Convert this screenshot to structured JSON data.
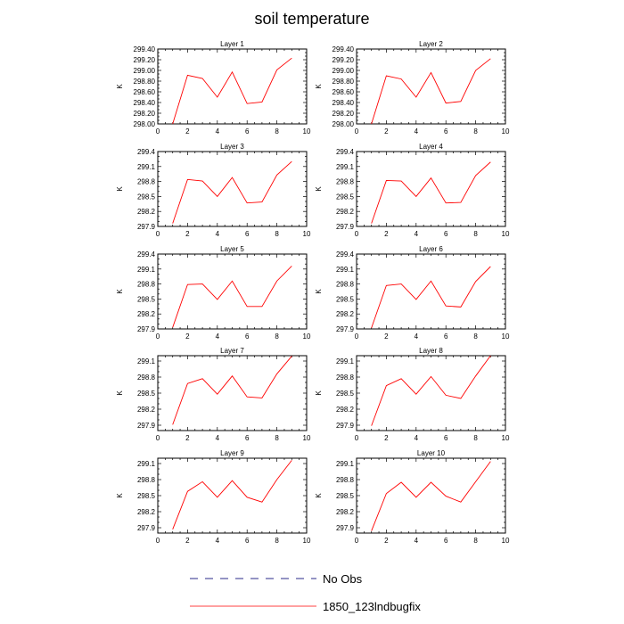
{
  "title": "soil temperature",
  "colors": {
    "model_line": "#ff0000",
    "obs_line": "#2a2a8a",
    "axis": "#000000",
    "background": "#ffffff"
  },
  "legend": {
    "items": [
      {
        "label": "No Obs",
        "style": "dashed",
        "color": "#2a2a8a"
      },
      {
        "label": "1850_123lndbugfix",
        "style": "solid",
        "color": "#ff0000"
      }
    ]
  },
  "chart_data": [
    {
      "type": "line",
      "title": "Layer 1",
      "ylabel": "K",
      "xlim": [
        0,
        10
      ],
      "xticks": [
        0,
        2,
        4,
        6,
        8,
        10
      ],
      "ylim": [
        298.0,
        299.4
      ],
      "yticks": [
        298.0,
        298.2,
        298.4,
        298.6,
        298.8,
        299.0,
        299.2,
        299.4
      ],
      "yticklabels": [
        "298.00",
        "298.20",
        "298.40",
        "298.60",
        "298.80",
        "299.00",
        "299.20",
        "299.40"
      ],
      "series": [
        {
          "name": "1850_123lndbugfix",
          "x": [
            1,
            2,
            3,
            4,
            5,
            6,
            7,
            8,
            9
          ],
          "y": [
            298.0,
            298.91,
            298.85,
            298.5,
            298.97,
            298.38,
            298.41,
            299.01,
            299.23
          ]
        }
      ]
    },
    {
      "type": "line",
      "title": "Layer 2",
      "ylabel": "K",
      "xlim": [
        0,
        10
      ],
      "xticks": [
        0,
        2,
        4,
        6,
        8,
        10
      ],
      "ylim": [
        298.0,
        299.4
      ],
      "yticks": [
        298.0,
        298.2,
        298.4,
        298.6,
        298.8,
        299.0,
        299.2,
        299.4
      ],
      "yticklabels": [
        "298.00",
        "298.20",
        "298.40",
        "298.60",
        "298.80",
        "299.00",
        "299.20",
        "299.40"
      ],
      "series": [
        {
          "name": "1850_123lndbugfix",
          "x": [
            1,
            2,
            3,
            4,
            5,
            6,
            7,
            8,
            9
          ],
          "y": [
            298.0,
            298.9,
            298.84,
            298.5,
            298.96,
            298.39,
            298.42,
            299.0,
            299.22
          ]
        }
      ]
    },
    {
      "type": "line",
      "title": "Layer 3",
      "ylabel": "K",
      "xlim": [
        0,
        10
      ],
      "xticks": [
        0,
        2,
        4,
        6,
        8,
        10
      ],
      "ylim": [
        297.9,
        299.4
      ],
      "yticks": [
        297.9,
        298.2,
        298.5,
        298.8,
        299.1,
        299.4
      ],
      "yticklabels": [
        "297.9",
        "298.2",
        "298.5",
        "298.8",
        "299.1",
        "299.4"
      ],
      "series": [
        {
          "name": "1850_123lndbugfix",
          "x": [
            1,
            2,
            3,
            4,
            5,
            6,
            7,
            8,
            9
          ],
          "y": [
            297.96,
            298.84,
            298.81,
            298.5,
            298.88,
            298.37,
            298.39,
            298.93,
            299.2
          ]
        }
      ]
    },
    {
      "type": "line",
      "title": "Layer 4",
      "ylabel": "K",
      "xlim": [
        0,
        10
      ],
      "xticks": [
        0,
        2,
        4,
        6,
        8,
        10
      ],
      "ylim": [
        297.9,
        299.4
      ],
      "yticks": [
        297.9,
        298.2,
        298.5,
        298.8,
        299.1,
        299.4
      ],
      "yticklabels": [
        "297.9",
        "298.2",
        "298.5",
        "298.8",
        "299.1",
        "299.4"
      ],
      "series": [
        {
          "name": "1850_123lndbugfix",
          "x": [
            1,
            2,
            3,
            4,
            5,
            6,
            7,
            8,
            9
          ],
          "y": [
            297.96,
            298.82,
            298.81,
            298.5,
            298.87,
            298.37,
            298.38,
            298.92,
            299.19
          ]
        }
      ]
    },
    {
      "type": "line",
      "title": "Layer 5",
      "ylabel": "K",
      "xlim": [
        0,
        10
      ],
      "xticks": [
        0,
        2,
        4,
        6,
        8,
        10
      ],
      "ylim": [
        297.9,
        299.4
      ],
      "yticks": [
        297.9,
        298.2,
        298.5,
        298.8,
        299.1,
        299.4
      ],
      "yticklabels": [
        "297.9",
        "298.2",
        "298.5",
        "298.8",
        "299.1",
        "299.4"
      ],
      "series": [
        {
          "name": "1850_123lndbugfix",
          "x": [
            1,
            2,
            3,
            4,
            5,
            6,
            7,
            8,
            9
          ],
          "y": [
            297.93,
            298.79,
            298.8,
            298.49,
            298.86,
            298.35,
            298.35,
            298.86,
            299.16
          ]
        }
      ]
    },
    {
      "type": "line",
      "title": "Layer 6",
      "ylabel": "K",
      "xlim": [
        0,
        10
      ],
      "xticks": [
        0,
        2,
        4,
        6,
        8,
        10
      ],
      "ylim": [
        297.9,
        299.4
      ],
      "yticks": [
        297.9,
        298.2,
        298.5,
        298.8,
        299.1,
        299.4
      ],
      "yticklabels": [
        "297.9",
        "298.2",
        "298.5",
        "298.8",
        "299.1",
        "299.4"
      ],
      "series": [
        {
          "name": "1850_123lndbugfix",
          "x": [
            1,
            2,
            3,
            4,
            5,
            6,
            7,
            8,
            9
          ],
          "y": [
            297.92,
            298.77,
            298.8,
            298.49,
            298.86,
            298.36,
            298.34,
            298.85,
            299.15
          ]
        }
      ]
    },
    {
      "type": "line",
      "title": "Layer 7",
      "ylabel": "K",
      "xlim": [
        0,
        10
      ],
      "xticks": [
        0,
        2,
        4,
        6,
        8,
        10
      ],
      "ylim": [
        297.8,
        299.2
      ],
      "yticks": [
        297.9,
        298.2,
        298.5,
        298.8,
        299.1
      ],
      "yticklabels": [
        "297.9",
        "298.2",
        "298.5",
        "298.8",
        "299.1"
      ],
      "series": [
        {
          "name": "1850_123lndbugfix",
          "x": [
            1,
            2,
            3,
            4,
            5,
            6,
            7,
            8,
            9
          ],
          "y": [
            297.91,
            298.68,
            298.77,
            298.48,
            298.82,
            298.43,
            298.41,
            298.86,
            299.19
          ]
        }
      ]
    },
    {
      "type": "line",
      "title": "Layer 8",
      "ylabel": "K",
      "xlim": [
        0,
        10
      ],
      "xticks": [
        0,
        2,
        4,
        6,
        8,
        10
      ],
      "ylim": [
        297.8,
        299.2
      ],
      "yticks": [
        297.9,
        298.2,
        298.5,
        298.8,
        299.1
      ],
      "yticklabels": [
        "297.9",
        "298.2",
        "298.5",
        "298.8",
        "299.1"
      ],
      "series": [
        {
          "name": "1850_123lndbugfix",
          "x": [
            1,
            2,
            3,
            4,
            5,
            6,
            7,
            8,
            9
          ],
          "y": [
            297.89,
            298.64,
            298.77,
            298.48,
            298.81,
            298.46,
            298.4,
            298.82,
            299.2
          ]
        }
      ]
    },
    {
      "type": "line",
      "title": "Layer 9",
      "ylabel": "K",
      "xlim": [
        0,
        10
      ],
      "xticks": [
        0,
        2,
        4,
        6,
        8,
        10
      ],
      "ylim": [
        297.8,
        299.2
      ],
      "yticks": [
        297.9,
        298.2,
        298.5,
        298.8,
        299.1
      ],
      "yticklabels": [
        "297.9",
        "298.2",
        "298.5",
        "298.8",
        "299.1"
      ],
      "series": [
        {
          "name": "1850_123lndbugfix",
          "x": [
            1,
            2,
            3,
            4,
            5,
            6,
            7,
            8,
            9
          ],
          "y": [
            297.87,
            298.58,
            298.76,
            298.47,
            298.78,
            298.47,
            298.38,
            298.8,
            299.16
          ]
        }
      ]
    },
    {
      "type": "line",
      "title": "Layer 10",
      "ylabel": "K",
      "xlim": [
        0,
        10
      ],
      "xticks": [
        0,
        2,
        4,
        6,
        8,
        10
      ],
      "ylim": [
        297.8,
        299.2
      ],
      "yticks": [
        297.9,
        298.2,
        298.5,
        298.8,
        299.1
      ],
      "yticklabels": [
        "297.9",
        "298.2",
        "298.5",
        "298.8",
        "299.1"
      ],
      "series": [
        {
          "name": "1850_123lndbugfix",
          "x": [
            1,
            2,
            3,
            4,
            5,
            6,
            7,
            8,
            9
          ],
          "y": [
            297.84,
            298.54,
            298.75,
            298.47,
            298.75,
            298.49,
            298.38,
            298.76,
            299.14
          ]
        }
      ]
    }
  ]
}
